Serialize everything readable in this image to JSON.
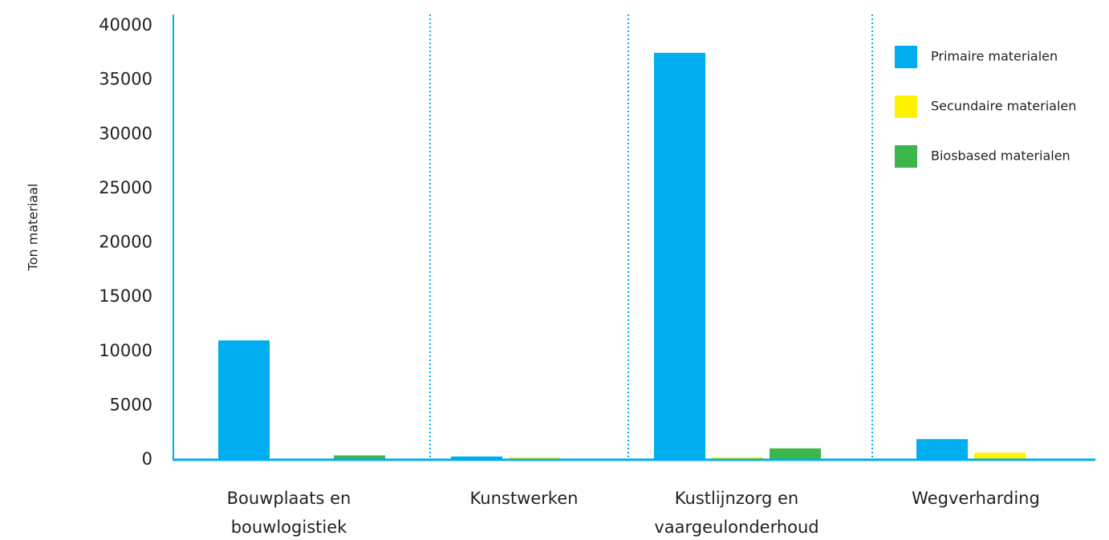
{
  "chart_data": {
    "type": "bar",
    "ylabel": "Ton materiaal",
    "categories": [
      "Bouwplaats en bouwlogistiek",
      "Kunstwerken",
      "Kustlijnzorg en vaargeulonderhoud",
      "Wegverharding"
    ],
    "series": [
      {
        "name": "Primaire materialen",
        "color": "#00aeef",
        "values": [
          11000,
          300,
          37500,
          1900
        ]
      },
      {
        "name": "Secundaire materialen",
        "color": "#fff200",
        "values": [
          0,
          250,
          250,
          650
        ]
      },
      {
        "name": "Biosbased materialen",
        "color": "#3cb54a",
        "values": [
          400,
          0,
          1050,
          0
        ]
      }
    ],
    "ylim": [
      0,
      40000
    ],
    "yticks": [
      0,
      5000,
      10000,
      15000,
      20000,
      25000,
      30000,
      35000,
      40000
    ],
    "legend": "upper right"
  }
}
